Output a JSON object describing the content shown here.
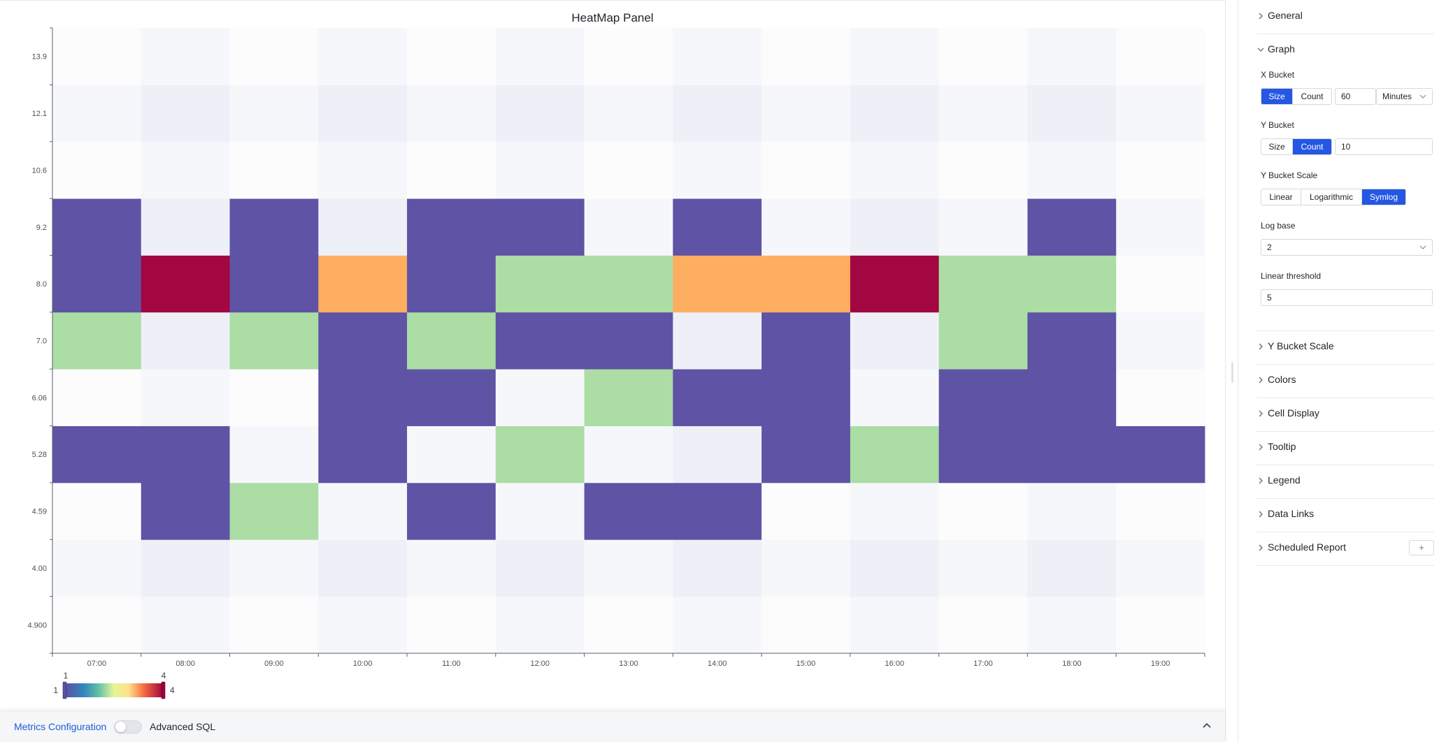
{
  "panel": {
    "title": "HeatMap Panel"
  },
  "chart_data": {
    "type": "heatmap",
    "title": "HeatMap Panel",
    "x_categories": [
      "07:00",
      "08:00",
      "09:00",
      "10:00",
      "11:00",
      "12:00",
      "13:00",
      "14:00",
      "15:00",
      "16:00",
      "17:00",
      "18:00",
      "19:00"
    ],
    "y_categories": [
      "4.900",
      "4.00",
      "4.59",
      "5.28",
      "6.06",
      "7.0",
      "8.0",
      "9.2",
      "10.6",
      "12.1",
      "13.9"
    ],
    "values": [
      [
        0,
        0,
        0,
        0,
        0,
        0,
        0,
        0,
        0,
        0,
        0,
        0,
        0
      ],
      [
        0,
        0,
        0,
        0,
        0,
        0,
        0,
        0,
        0,
        0,
        0,
        0,
        0
      ],
      [
        0,
        1,
        2,
        0,
        1,
        0,
        1,
        1,
        0,
        0,
        0,
        0,
        0
      ],
      [
        1,
        1,
        0,
        1,
        0,
        2,
        0,
        0,
        1,
        2,
        1,
        1,
        1
      ],
      [
        0,
        0,
        0,
        1,
        1,
        0,
        2,
        1,
        1,
        0,
        1,
        1,
        0
      ],
      [
        2,
        0,
        2,
        1,
        2,
        1,
        1,
        0,
        1,
        0,
        2,
        1,
        0
      ],
      [
        1,
        4,
        1,
        3,
        1,
        2,
        2,
        3,
        3,
        4,
        2,
        2,
        0
      ],
      [
        1,
        0,
        1,
        0,
        1,
        1,
        0,
        1,
        0,
        0,
        0,
        1,
        0
      ],
      [
        0,
        0,
        0,
        0,
        0,
        0,
        0,
        0,
        0,
        0,
        0,
        0,
        0
      ],
      [
        0,
        0,
        0,
        0,
        0,
        0,
        0,
        0,
        0,
        0,
        0,
        0,
        0
      ],
      [
        0,
        0,
        0,
        0,
        0,
        0,
        0,
        0,
        0,
        0,
        0,
        0,
        0
      ]
    ],
    "color_map": {
      "1": "#5e53a5",
      "2": "#abdda4",
      "3": "#fdae61",
      "4": "#a30741"
    },
    "legend": {
      "min": "1",
      "max": "4",
      "min_label": "1",
      "max_label": "4"
    }
  },
  "footer": {
    "metrics_link": "Metrics Configuration",
    "toggle_label": "Advanced SQL",
    "toggle_on": false
  },
  "sidebar": {
    "general": "General",
    "graph": {
      "title": "Graph",
      "x_bucket": {
        "label": "X Bucket",
        "options": [
          "Size",
          "Count"
        ],
        "selected": "Size",
        "value": "60",
        "unit": "Minutes"
      },
      "y_bucket": {
        "label": "Y Bucket",
        "options": [
          "Size",
          "Count"
        ],
        "selected": "Count",
        "value": "10"
      },
      "y_bucket_scale": {
        "label": "Y Bucket Scale",
        "options": [
          "Linear",
          "Logarithmic",
          "Symlog"
        ],
        "selected": "Symlog"
      },
      "log_base": {
        "label": "Log base",
        "value": "2"
      },
      "linear_threshold": {
        "label": "Linear threshold",
        "value": "5"
      }
    },
    "sections": [
      "Y Bucket Scale",
      "Colors",
      "Cell Display",
      "Tooltip",
      "Legend",
      "Data Links",
      "Scheduled Report"
    ],
    "add_label": "+"
  }
}
